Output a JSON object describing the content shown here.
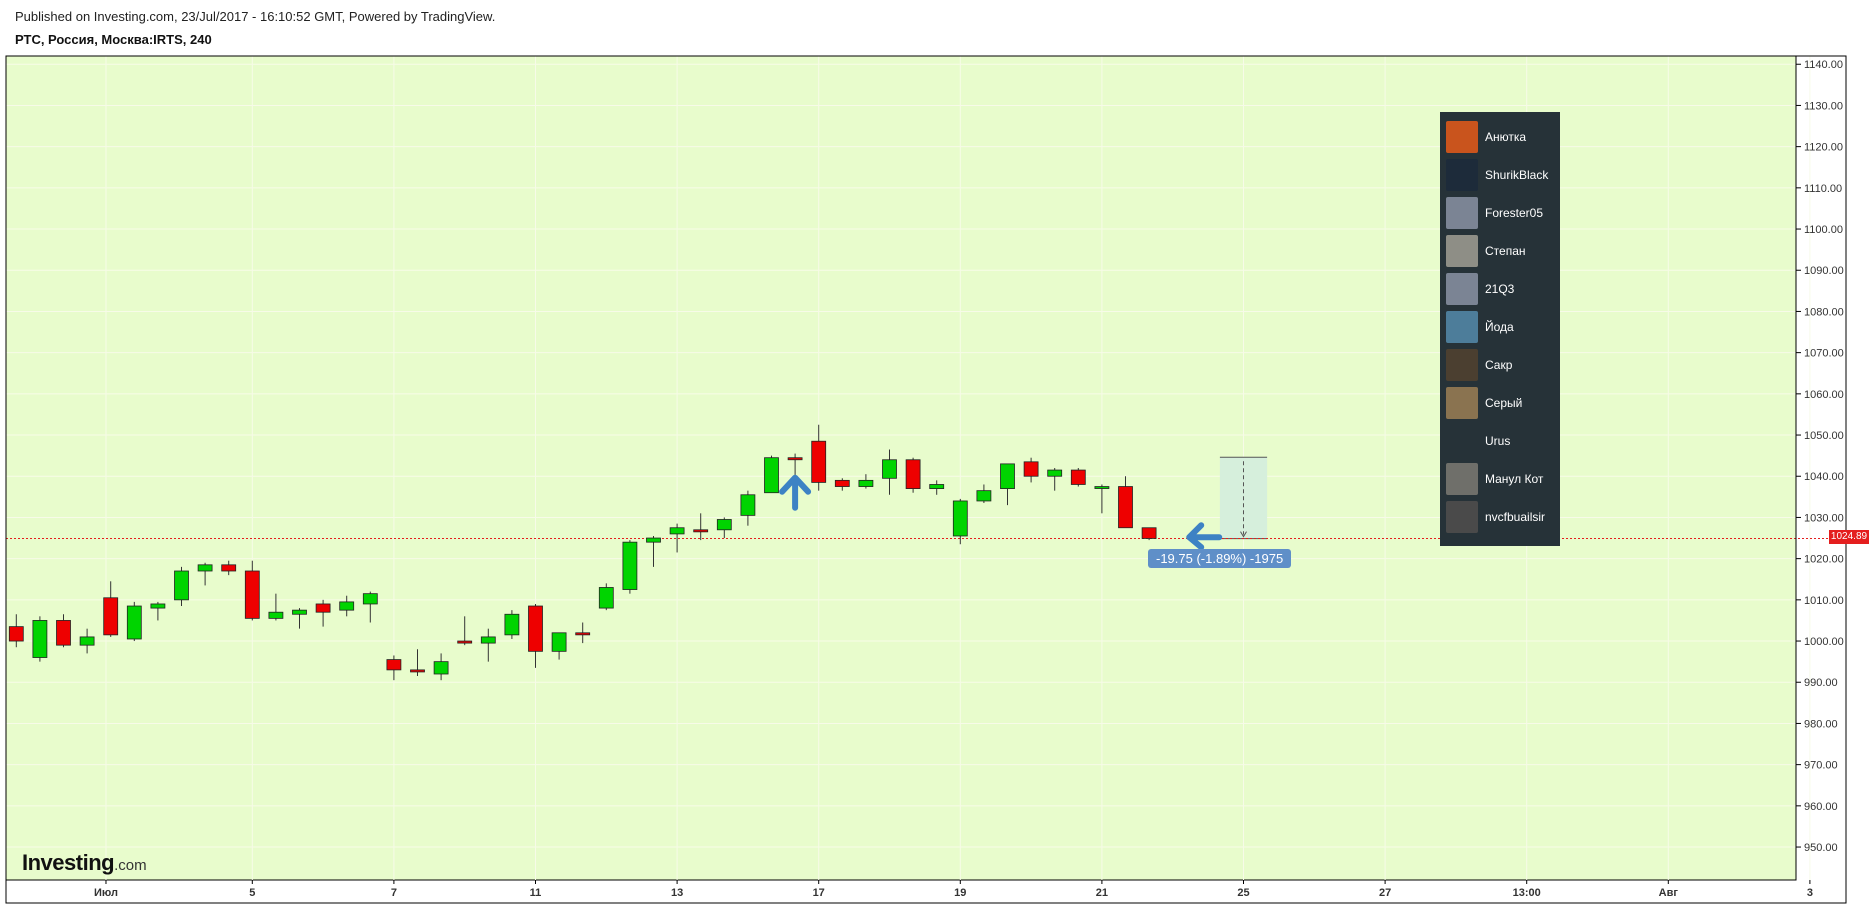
{
  "header": {
    "published": "Published on Investing.com, 23/Jul/2017 - 16:10:52 GMT, Powered by TradingView.",
    "symbol": "РТС, Россия, Москва:IRTS, 240"
  },
  "logo": {
    "main": "Investing",
    "suffix": ".com"
  },
  "colors": {
    "background": "#e8fccc",
    "up": "#00d400",
    "down": "#ee0000",
    "price_line": "#e41e1e",
    "legend_bg": "#263238",
    "arrow": "#3d82c4",
    "measure_fill": "#d6efdc"
  },
  "legend": {
    "items": [
      {
        "name": "Анютка",
        "avatar_color": "#c9541d",
        "icon": "fox-avatar"
      },
      {
        "name": "ShurikBlack",
        "avatar_color": "#1d2b3a",
        "icon": "dark-figure-avatar"
      },
      {
        "name": "Forester05",
        "avatar_color": "#7b8494",
        "icon": "person-silhouette-avatar"
      },
      {
        "name": "Степан",
        "avatar_color": "#8e8e86",
        "icon": "stone-texture-avatar"
      },
      {
        "name": "21Q3",
        "avatar_color": "#7b8494",
        "icon": "person-silhouette-avatar"
      },
      {
        "name": "Йода",
        "avatar_color": "#4d7d9a",
        "icon": "yoda-avatar"
      },
      {
        "name": "Сакр",
        "avatar_color": "#4b3f30",
        "icon": "face-avatar"
      },
      {
        "name": "Серый",
        "avatar_color": "#8a7350",
        "icon": "wolf-avatar"
      },
      {
        "name": "Urus",
        "avatar_color": "#263238",
        "icon": "small-logo-avatar"
      },
      {
        "name": "Манул Кот",
        "avatar_color": "#6f6f6a",
        "icon": "cat-avatar"
      },
      {
        "name": "nvcfbuailsir",
        "avatar_color": "#4a4a4a",
        "icon": "gray-circle-avatar"
      }
    ]
  },
  "annotations": {
    "current_price": "1024.89",
    "measure_label": "-19.75 (-1.89%) -1975"
  },
  "chart_data": {
    "type": "candlestick",
    "ylim": [
      942,
      1142
    ],
    "y_ticks": [
      950,
      960,
      970,
      980,
      990,
      1000,
      1010,
      1020,
      1030,
      1040,
      1050,
      1060,
      1070,
      1080,
      1090,
      1100,
      1110,
      1120,
      1130,
      1140
    ],
    "y_tick_labels": [
      "950.00",
      "960.00",
      "970.00",
      "980.00",
      "990.00",
      "1000.00",
      "1010.00",
      "1020.00",
      "1030.00",
      "1040.00",
      "1050.00",
      "1060.00",
      "1070.00",
      "1080.00",
      "1090.00",
      "1100.00",
      "1110.00",
      "1120.00",
      "1130.00",
      "1140.00"
    ],
    "x_ticks": [
      {
        "index": 3.8,
        "label": "Июл"
      },
      {
        "index": 10,
        "label": "5"
      },
      {
        "index": 16,
        "label": "7"
      },
      {
        "index": 22,
        "label": "11"
      },
      {
        "index": 28,
        "label": "13"
      },
      {
        "index": 34,
        "label": "17"
      },
      {
        "index": 40,
        "label": "19"
      },
      {
        "index": 46,
        "label": "21"
      },
      {
        "index": 52,
        "label": "25"
      },
      {
        "index": 58,
        "label": "27"
      },
      {
        "index": 64,
        "label": "13:00"
      },
      {
        "index": 70,
        "label": "Авг"
      },
      {
        "index": 76,
        "label": "3"
      }
    ],
    "current_price": 1024.89,
    "measure": {
      "start_index": 51,
      "end_index": 53,
      "from": 1044.6,
      "to": 1024.85
    },
    "arrows": [
      {
        "index": 33,
        "price": 1036,
        "direction": "up"
      },
      {
        "index": 49.7,
        "price": 1025.2,
        "direction": "left"
      }
    ],
    "candles": [
      {
        "o": 1003.5,
        "h": 1006.5,
        "l": 998.5,
        "c": 1000.0
      },
      {
        "o": 996.0,
        "h": 1006.0,
        "l": 995.0,
        "c": 1005.0
      },
      {
        "o": 1005.0,
        "h": 1006.5,
        "l": 998.5,
        "c": 999.0
      },
      {
        "o": 999.0,
        "h": 1003.0,
        "l": 997.0,
        "c": 1001.0
      },
      {
        "o": 1010.5,
        "h": 1014.5,
        "l": 1001.0,
        "c": 1001.5
      },
      {
        "o": 1000.5,
        "h": 1009.5,
        "l": 1000.0,
        "c": 1008.5
      },
      {
        "o": 1008.0,
        "h": 1009.5,
        "l": 1005.0,
        "c": 1009.0
      },
      {
        "o": 1010.0,
        "h": 1018.0,
        "l": 1008.5,
        "c": 1017.0
      },
      {
        "o": 1017.0,
        "h": 1019.0,
        "l": 1013.5,
        "c": 1018.5
      },
      {
        "o": 1018.5,
        "h": 1019.5,
        "l": 1016.0,
        "c": 1017.0
      },
      {
        "o": 1017.0,
        "h": 1019.5,
        "l": 1005.0,
        "c": 1005.5
      },
      {
        "o": 1005.5,
        "h": 1011.5,
        "l": 1005.0,
        "c": 1007.0
      },
      {
        "o": 1006.5,
        "h": 1008.0,
        "l": 1003.0,
        "c": 1007.5
      },
      {
        "o": 1009.0,
        "h": 1010.0,
        "l": 1003.5,
        "c": 1007.0
      },
      {
        "o": 1007.5,
        "h": 1011.0,
        "l": 1006.0,
        "c": 1009.5
      },
      {
        "o": 1009.0,
        "h": 1012.0,
        "l": 1004.5,
        "c": 1011.5
      },
      {
        "o": 995.5,
        "h": 996.5,
        "l": 990.5,
        "c": 993.0
      },
      {
        "o": 993.0,
        "h": 998.0,
        "l": 991.5,
        "c": 992.5
      },
      {
        "o": 992.0,
        "h": 997.0,
        "l": 990.5,
        "c": 995.0
      },
      {
        "o": 1000.0,
        "h": 1006.0,
        "l": 999.0,
        "c": 999.5
      },
      {
        "o": 999.5,
        "h": 1003.0,
        "l": 995.0,
        "c": 1001.0
      },
      {
        "o": 1001.5,
        "h": 1007.5,
        "l": 1000.5,
        "c": 1006.5
      },
      {
        "o": 1008.5,
        "h": 1009.0,
        "l": 993.5,
        "c": 997.5
      },
      {
        "o": 997.5,
        "h": 1002.0,
        "l": 995.5,
        "c": 1002.0
      },
      {
        "o": 1002.0,
        "h": 1004.5,
        "l": 999.5,
        "c": 1001.5
      },
      {
        "o": 1008.0,
        "h": 1014.0,
        "l": 1007.5,
        "c": 1013.0
      },
      {
        "o": 1012.5,
        "h": 1024.5,
        "l": 1011.5,
        "c": 1024.0
      },
      {
        "o": 1024.0,
        "h": 1025.5,
        "l": 1018.0,
        "c": 1025.0
      },
      {
        "o": 1026.0,
        "h": 1028.5,
        "l": 1021.5,
        "c": 1027.5
      },
      {
        "o": 1027.0,
        "h": 1031.0,
        "l": 1024.5,
        "c": 1026.5
      },
      {
        "o": 1027.0,
        "h": 1030.0,
        "l": 1025.0,
        "c": 1029.5
      },
      {
        "o": 1030.5,
        "h": 1036.5,
        "l": 1028.0,
        "c": 1035.5
      },
      {
        "o": 1036.0,
        "h": 1045.0,
        "l": 1036.0,
        "c": 1044.5
      },
      {
        "o": 1044.5,
        "h": 1045.5,
        "l": 1036.5,
        "c": 1044.0
      },
      {
        "o": 1048.5,
        "h": 1052.5,
        "l": 1036.5,
        "c": 1038.5
      },
      {
        "o": 1039.0,
        "h": 1039.5,
        "l": 1036.5,
        "c": 1037.5
      },
      {
        "o": 1037.5,
        "h": 1040.5,
        "l": 1037.0,
        "c": 1039.0
      },
      {
        "o": 1039.5,
        "h": 1046.5,
        "l": 1035.5,
        "c": 1044.0
      },
      {
        "o": 1044.0,
        "h": 1044.5,
        "l": 1036.0,
        "c": 1037.0
      },
      {
        "o": 1037.0,
        "h": 1039.0,
        "l": 1035.5,
        "c": 1038.0
      },
      {
        "o": 1025.5,
        "h": 1034.5,
        "l": 1023.5,
        "c": 1034.0
      },
      {
        "o": 1034.0,
        "h": 1038.0,
        "l": 1033.5,
        "c": 1036.5
      },
      {
        "o": 1037.0,
        "h": 1043.0,
        "l": 1033.0,
        "c": 1043.0
      },
      {
        "o": 1043.5,
        "h": 1044.5,
        "l": 1038.5,
        "c": 1040.0
      },
      {
        "o": 1040.0,
        "h": 1042.0,
        "l": 1036.5,
        "c": 1041.5
      },
      {
        "o": 1041.5,
        "h": 1042.0,
        "l": 1037.5,
        "c": 1038.0
      },
      {
        "o": 1037.5,
        "h": 1038.0,
        "l": 1031.0,
        "c": 1037.5
      },
      {
        "o": 1037.5,
        "h": 1040.0,
        "l": 1027.5,
        "c": 1027.5
      },
      {
        "o": 1027.5,
        "h": 1027.5,
        "l": 1024.5,
        "c": 1024.9
      }
    ]
  }
}
